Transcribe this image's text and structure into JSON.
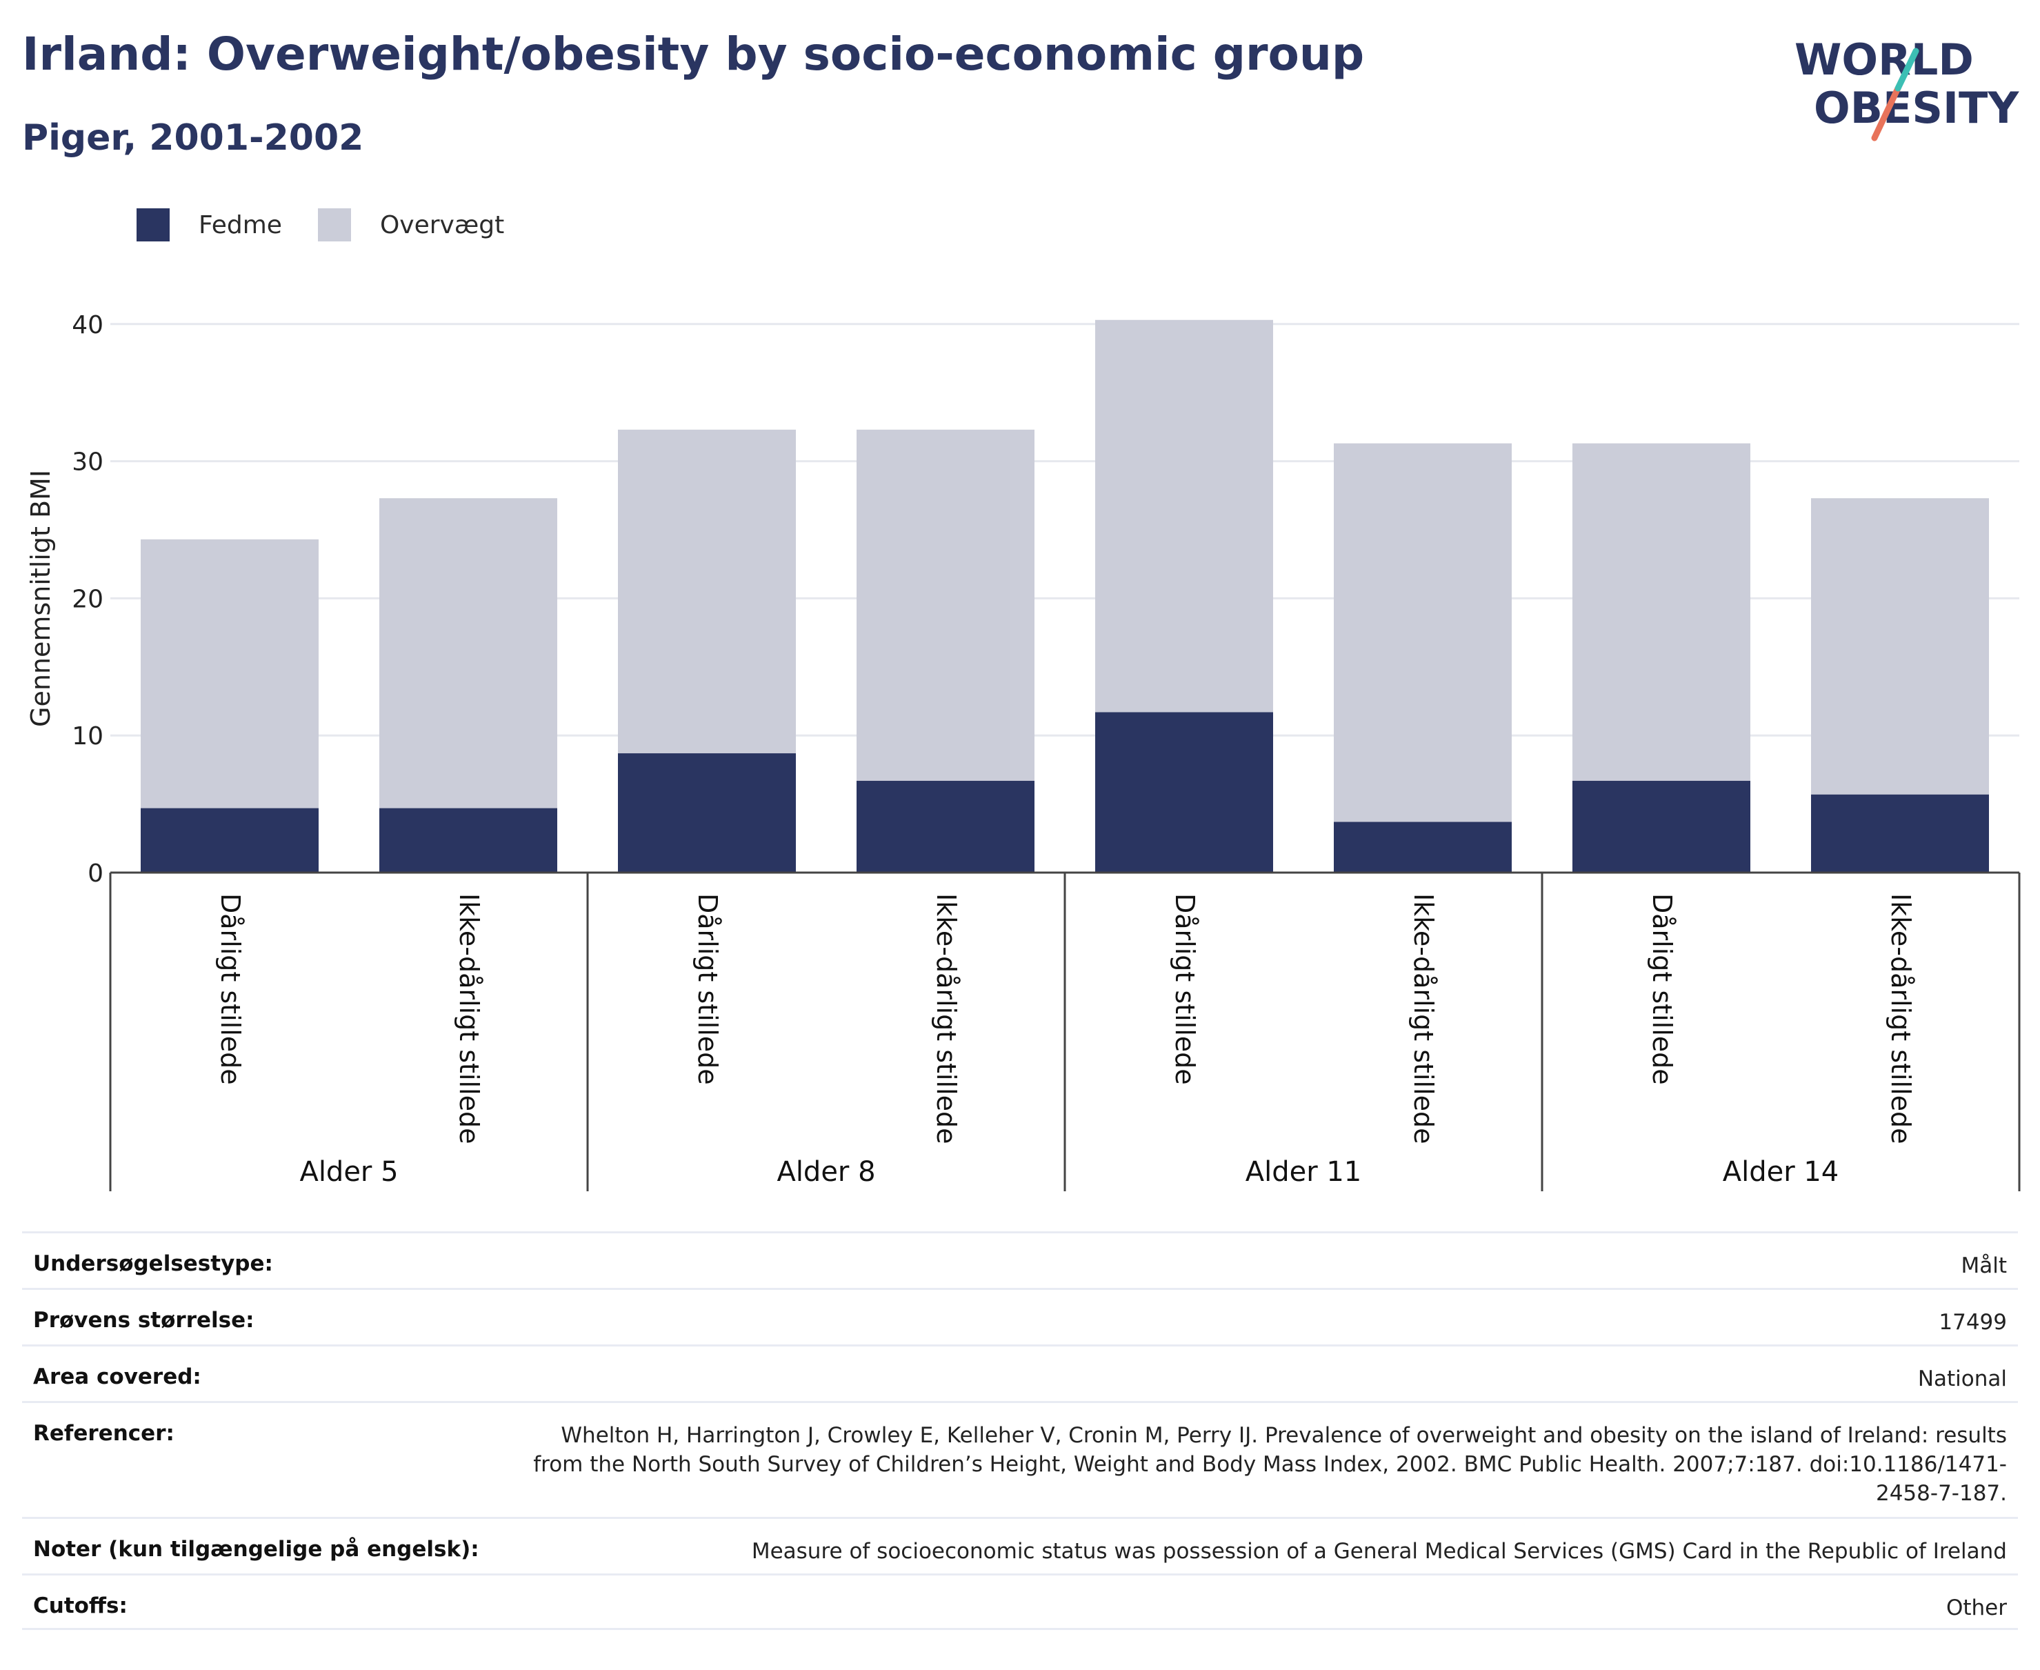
{
  "header": {
    "title": "Irland: Overweight/obesity by socio-economic group",
    "subtitle": "Piger, 2001-2002"
  },
  "logo": {
    "line1": "WORLD",
    "line2": "OBESITY"
  },
  "colors": {
    "fedme": "#2a3561",
    "overvaegt": "#cbcdd9",
    "grid": "#e6e8ee",
    "axis": "#555555"
  },
  "chart_data": {
    "type": "bar",
    "stacked": true,
    "ylabel": "Gennemsnitligt BMI",
    "ylim": [
      0,
      42
    ],
    "yticks": [
      0,
      10,
      20,
      30,
      40
    ],
    "grid": true,
    "legend_position": "top-left",
    "groups": [
      "Alder 5",
      "Alder 8",
      "Alder 11",
      "Alder 14"
    ],
    "categories": [
      "Dårligt stillede",
      "Ikke-dårligt stillede",
      "Dårligt stillede",
      "Ikke-dårligt stillede",
      "Dårligt stillede",
      "Ikke-dårligt stillede",
      "Dårligt stillede",
      "Ikke-dårligt stillede"
    ],
    "series": [
      {
        "name": "Fedme",
        "values": [
          4.7,
          4.7,
          8.7,
          6.7,
          11.7,
          3.7,
          6.7,
          5.7
        ]
      },
      {
        "name": "Overvægt",
        "values": [
          19.6,
          22.6,
          23.6,
          25.6,
          28.6,
          27.6,
          24.6,
          21.6
        ]
      }
    ]
  },
  "info": [
    {
      "label": "Undersøgelsestype:",
      "value": "Målt"
    },
    {
      "label": "Prøvens størrelse:",
      "value": "17499"
    },
    {
      "label": "Area covered:",
      "value": "National"
    },
    {
      "label": "Referencer:",
      "value": "Whelton H, Harrington J, Crowley E, Kelleher V, Cronin M, Perry IJ. Prevalence of overweight and obesity on the island of Ireland: results from the North South Survey of Children’s Height, Weight and Body Mass Index, 2002. BMC Public Health. 2007;7:187. doi:10.1186/1471-2458-7-187."
    },
    {
      "label": "Noter (kun tilgængelige på engelsk):",
      "value": "Measure of socioeconomic status was possession of a General Medical Services (GMS) Card in the Republic of Ireland"
    },
    {
      "label": "Cutoffs:",
      "value": "Other"
    }
  ]
}
